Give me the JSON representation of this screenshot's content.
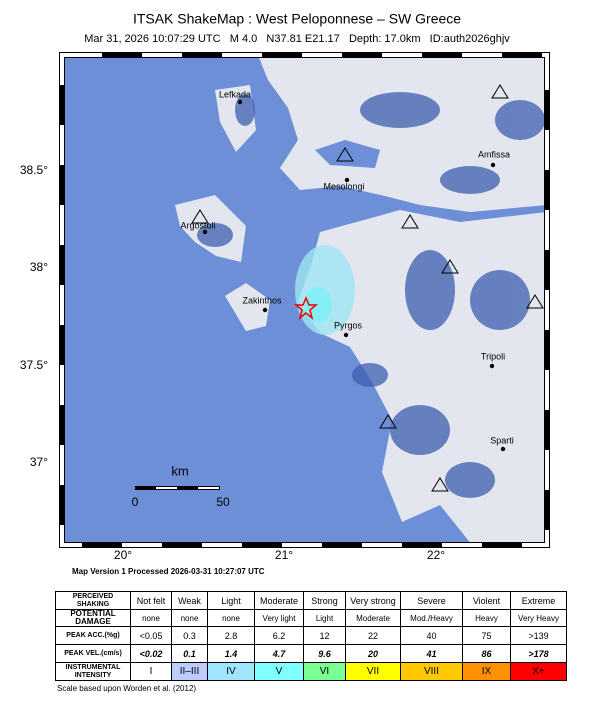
{
  "header": {
    "title": "ITSAK ShakeMap : West Peloponnese – SW Greece",
    "subtitle": "Mar 31, 2026 10:07:29 UTC   M 4.0   N37.81 E21.17   Depth: 17.0km   ID:auth2026ghjv"
  },
  "map": {
    "places": [
      "Lefkada",
      "Amfissa",
      "Mesolongi",
      "Argostoli",
      "Zakinthos",
      "Pyrgos",
      "Tripoli",
      "Sparti"
    ],
    "lat_labels": [
      "38.5°",
      "38°",
      "37.5°",
      "37°"
    ],
    "lon_labels": [
      "20°",
      "21°",
      "22°"
    ],
    "scale_unit": "km",
    "scale_labels": [
      "0",
      "50"
    ]
  },
  "map_version": "Map Version 1 Processed 2026-03-31 10:27:07 UTC",
  "table": {
    "rows": [
      {
        "label": "PERCEIVED SHAKING",
        "cells": [
          "Not felt",
          "Weak",
          "Light",
          "Moderate",
          "Strong",
          "Very strong",
          "Severe",
          "Violent",
          "Extreme"
        ]
      },
      {
        "label": "POTENTIAL DAMAGE",
        "cells": [
          "none",
          "none",
          "none",
          "Very light",
          "Light",
          "Moderate",
          "Mod./Heavy",
          "Heavy",
          "Very Heavy"
        ]
      },
      {
        "label": "PEAK ACC.(%g)",
        "cells": [
          "<0.05",
          "0.3",
          "2.8",
          "6.2",
          "12",
          "22",
          "40",
          "75",
          ">139"
        ]
      },
      {
        "label": "PEAK VEL.(cm/s)",
        "cells": [
          "<0.02",
          "0.1",
          "1.4",
          "4.7",
          "9.6",
          "20",
          "41",
          "86",
          ">178"
        ]
      },
      {
        "label": "INSTRUMENTAL INTENSITY",
        "cells": [
          "I",
          "II–III",
          "IV",
          "V",
          "VI",
          "VII",
          "VIII",
          "IX",
          "X+"
        ]
      }
    ]
  },
  "note": "Scale based upon Worden et al. (2012)"
}
